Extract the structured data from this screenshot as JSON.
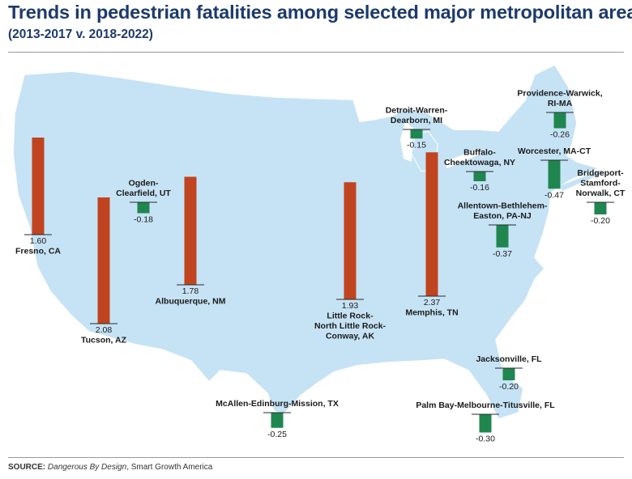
{
  "title": "Trends in pedestrian fatalities among selected major metropolitan areas",
  "subtitle": "(2013-2017 v. 2018-2022)",
  "source": {
    "prefix": "SOURCE:",
    "publication": "Dangerous By Design",
    "suffix": ", Smart Growth America"
  },
  "colors": {
    "land": "#c6e3f5",
    "increase": "#c0441f",
    "decrease": "#1f8650",
    "title": "#1d3a6b"
  },
  "chart_data": {
    "type": "bar",
    "metros": [
      {
        "name": [
          "Fresno, CA"
        ],
        "value": 1.6,
        "display": "1.60"
      },
      {
        "name": [
          "Tucson, AZ"
        ],
        "value": 2.08,
        "display": "2.08"
      },
      {
        "name": [
          "Ogden-",
          "Clearfield, UT"
        ],
        "value": -0.18,
        "display": "-0.18"
      },
      {
        "name": [
          "Albuquerque, NM"
        ],
        "value": 1.78,
        "display": "1.78"
      },
      {
        "name": [
          "Little Rock-",
          "North Little Rock-",
          "Conway, AK"
        ],
        "value": 1.93,
        "display": "1.93"
      },
      {
        "name": [
          "Memphis, TN"
        ],
        "value": 2.37,
        "display": "2.37"
      },
      {
        "name": [
          "Detroit-Warren-",
          "Dearborn, MI"
        ],
        "value": -0.15,
        "display": "-0.15"
      },
      {
        "name": [
          "Buffalo-",
          "Cheektowaga, NY"
        ],
        "value": -0.16,
        "display": "-0.16"
      },
      {
        "name": [
          "Providence-Warwick,",
          "RI-MA"
        ],
        "value": -0.26,
        "display": "-0.26"
      },
      {
        "name": [
          "Worcester, MA-CT"
        ],
        "value": -0.47,
        "display": "-0.47"
      },
      {
        "name": [
          "Bridgeport-",
          "Stamford-",
          "Norwalk, CT"
        ],
        "value": -0.2,
        "display": "-0.20"
      },
      {
        "name": [
          "Allentown-Bethlehem-",
          "Easton, PA-NJ"
        ],
        "value": -0.37,
        "display": "-0.37"
      },
      {
        "name": [
          "Jacksonville, FL"
        ],
        "value": -0.2,
        "display": "-0.20"
      },
      {
        "name": [
          "McAllen-Edinburg-Mission, TX"
        ],
        "value": -0.25,
        "display": "-0.25"
      },
      {
        "name": [
          "Palm Bay-Melbourne-Titusville, FL"
        ],
        "value": -0.3,
        "display": "-0.30"
      }
    ]
  }
}
